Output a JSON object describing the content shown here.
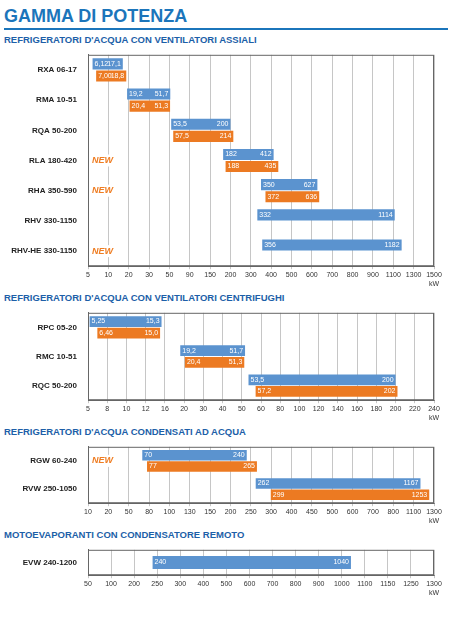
{
  "title": "GAMMA DI POTENZA",
  "chart_data": [
    {
      "type": "bar",
      "orientation": "horizontal",
      "title": "REFRIGERATORI D'ACQUA CON VENTILATORI ASSIALI",
      "categories": [
        "RXA 06-17",
        "RMA 10-51",
        "RQA 50-200",
        "RLA 180-420",
        "RHA 350-590",
        "RHV 330-1150",
        "RHV-HE 330-1150"
      ],
      "series": [
        {
          "color": "#5b93cf",
          "values": [
            [
              6.12,
              17.1
            ],
            [
              19.2,
              51.7
            ],
            [
              53.5,
              200
            ],
            [
              182,
              412
            ],
            [
              350,
              627
            ],
            [
              332,
              1114
            ],
            [
              356,
              1182
            ]
          ],
          "value_labels": [
            [
              "6,12",
              "17,1"
            ],
            [
              "19,2",
              "51,7"
            ],
            [
              "53,5",
              "200"
            ],
            [
              "182",
              "412"
            ],
            [
              "350",
              "627"
            ],
            [
              "332",
              "1114"
            ],
            [
              "356",
              "1182"
            ]
          ]
        },
        {
          "color": "#ec7a22",
          "values": [
            [
              7.0,
              18.8
            ],
            [
              20.4,
              51.3
            ],
            [
              57.5,
              214
            ],
            [
              188,
              435
            ],
            [
              372,
              636
            ],
            null,
            null
          ],
          "value_labels": [
            [
              "7,00",
              "18,8"
            ],
            [
              "20,4",
              "51,3"
            ],
            [
              "57,5",
              "214"
            ],
            [
              "188",
              "435"
            ],
            [
              "372",
              "636"
            ],
            null,
            null
          ]
        }
      ],
      "xlim": [
        5,
        1500
      ],
      "xticks": [
        5,
        10,
        20,
        30,
        50,
        90,
        150,
        200,
        300,
        400,
        500,
        600,
        700,
        800,
        900,
        1100,
        1300,
        {
          "value": 1500,
          "label": "1500 kW"
        }
      ],
      "grid": true,
      "data_labels": true,
      "annotations": [
        {
          "category": "RLA 180-420",
          "text": "NEW"
        },
        {
          "category": "RHA 350-590",
          "text": "NEW"
        },
        {
          "category": "RHV-HE 330-1150",
          "text": "NEW"
        }
      ]
    },
    {
      "type": "bar",
      "orientation": "horizontal",
      "title": "REFRIGERATORI D'ACQUA CON VENTILATORI CENTRIFUGHI",
      "categories": [
        "RPC 05-20",
        "RMC 10-51",
        "RQC 50-200"
      ],
      "series": [
        {
          "color": "#5b93cf",
          "values": [
            [
              5.25,
              15.3
            ],
            [
              19.2,
              51.7
            ],
            [
              53.5,
              200
            ]
          ],
          "value_labels": [
            [
              "5,25",
              "15,3"
            ],
            [
              "19,2",
              "51,7"
            ],
            [
              "53,5",
              "200"
            ]
          ]
        },
        {
          "color": "#ec7a22",
          "values": [
            [
              6.46,
              15.0
            ],
            [
              20.4,
              51.3
            ],
            [
              57.2,
              202
            ]
          ],
          "value_labels": [
            [
              "6,46",
              "15,0"
            ],
            [
              "20,4",
              "51,3"
            ],
            [
              "57,2",
              "202"
            ]
          ]
        }
      ],
      "xlim": [
        5,
        240
      ],
      "xticks": [
        5,
        8,
        10,
        12,
        16,
        20,
        30,
        40,
        50,
        60,
        80,
        100,
        120,
        140,
        160,
        180,
        200,
        220,
        {
          "value": 240,
          "label": "240 kW"
        }
      ],
      "grid": true,
      "data_labels": true
    },
    {
      "type": "bar",
      "orientation": "horizontal",
      "title": "REFRIGERATORI D'ACQUA CONDENSATI AD ACQUA",
      "categories": [
        "RGW 60-240",
        "RVW 250-1050"
      ],
      "series": [
        {
          "color": "#5b93cf",
          "values": [
            [
              70,
              240
            ],
            [
              262,
              1167
            ]
          ],
          "value_labels": [
            [
              "70",
              "240"
            ],
            [
              "262",
              "1167"
            ]
          ]
        },
        {
          "color": "#ec7a22",
          "values": [
            [
              77,
              265
            ],
            [
              299,
              1253
            ]
          ],
          "value_labels": [
            [
              "77",
              "265"
            ],
            [
              "299",
              "1253"
            ]
          ]
        }
      ],
      "xlim": [
        10,
        1300
      ],
      "xticks": [
        10,
        20,
        50,
        80,
        100,
        130,
        150,
        200,
        250,
        300,
        400,
        450,
        500,
        600,
        700,
        800,
        1100,
        {
          "value": 1300,
          "label": "1300 kW"
        }
      ],
      "grid": true,
      "data_labels": true,
      "annotations": [
        {
          "category": "RGW 60-240",
          "text": "NEW"
        }
      ]
    },
    {
      "type": "bar",
      "orientation": "horizontal",
      "title": "MOTOEVAPORANTI CON CONDENSATORE REMOTO",
      "categories": [
        "EVW 240-1200"
      ],
      "series": [
        {
          "color": "#5b93cf",
          "values": [
            [
              240,
              1040
            ]
          ],
          "value_labels": [
            [
              "240",
              "1040"
            ]
          ]
        }
      ],
      "xlim": [
        50,
        1300
      ],
      "xticks": [
        50,
        100,
        200,
        250,
        300,
        400,
        500,
        600,
        700,
        800,
        900,
        1000,
        1100,
        1150,
        1250,
        {
          "value": 1300,
          "label": "1300 kW"
        }
      ],
      "grid": true,
      "data_labels": true
    }
  ]
}
